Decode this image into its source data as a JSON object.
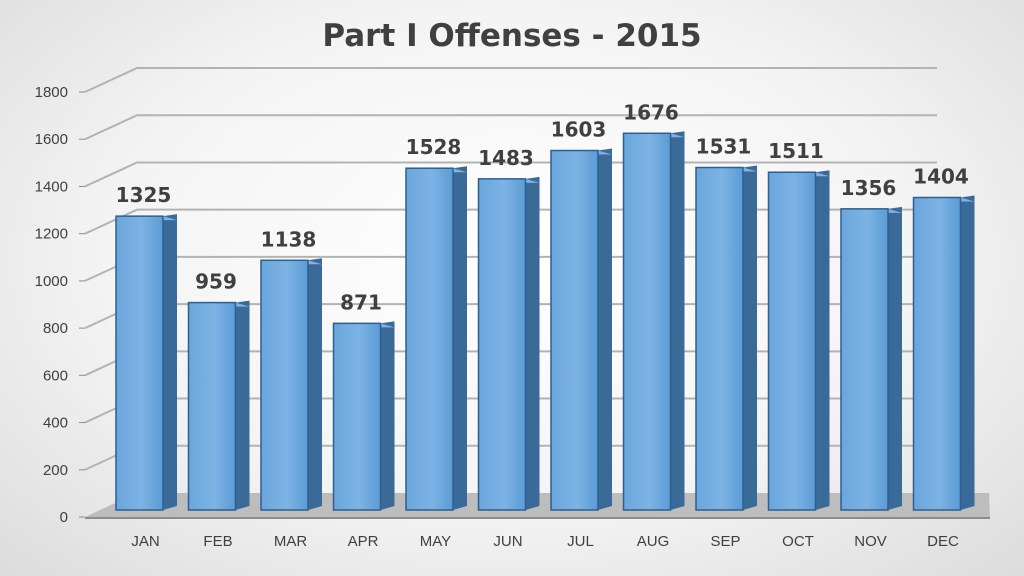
{
  "chart_data": {
    "type": "bar",
    "title": "Part I Offenses - 2015",
    "xlabel": "",
    "ylabel": "",
    "categories": [
      "JAN",
      "FEB",
      "MAR",
      "APR",
      "MAY",
      "JUN",
      "JUL",
      "AUG",
      "SEP",
      "OCT",
      "NOV",
      "DEC"
    ],
    "values": [
      1325,
      959,
      1138,
      871,
      1528,
      1483,
      1603,
      1676,
      1531,
      1511,
      1356,
      1404
    ],
    "ylim": [
      0,
      1800
    ],
    "yticks": [
      "0",
      "200",
      "400",
      "600",
      "800",
      "1000",
      "1200",
      "1400",
      "1600",
      "1800"
    ],
    "grid": true,
    "legend": "none",
    "style": "3d-column"
  },
  "colors": {
    "bar_front": "#5b9bd5",
    "bar_side": "#3a6a98",
    "bar_top": "#7fb2e2",
    "bar_edge": "#2e5f8f",
    "floor": "#bdbdbd",
    "grid": "#b3b3b3",
    "text": "#404040"
  }
}
